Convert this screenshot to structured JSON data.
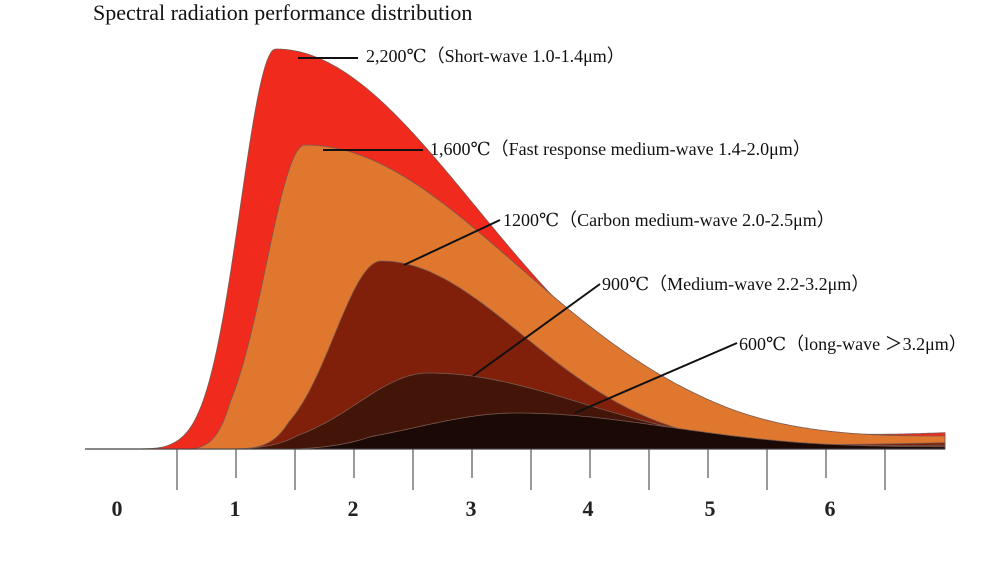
{
  "chart_data": {
    "type": "area",
    "title": "Spectral radiation performance distribution",
    "xlabel": "",
    "ylabel": "",
    "xlim": [
      0,
      7
    ],
    "tick_labels": [
      "0",
      "1",
      "2",
      "3",
      "4",
      "5",
      "6"
    ],
    "series": [
      {
        "name": "2,200℃（Short-wave 1.0-1.4μm）",
        "peak_x": 1.35,
        "peak_y": 1.0,
        "color": "#f12a1e"
      },
      {
        "name": "1,600℃（Fast response medium-wave 1.4-2.0μm）",
        "peak_x": 1.6,
        "peak_y": 0.76,
        "color": "#e0772e"
      },
      {
        "name": "1200℃（Carbon  medium-wave 2.0-2.5μm）",
        "peak_x": 2.25,
        "peak_y": 0.47,
        "color": "#80200a"
      },
      {
        "name": "900℃（Medium-wave 2.2-3.2μm）",
        "peak_x": 2.65,
        "peak_y": 0.19,
        "color": "#431408"
      },
      {
        "name": "600℃（long-wave ＞3.2μm）",
        "peak_x": 3.4,
        "peak_y": 0.09,
        "color": "#1a0905"
      }
    ]
  }
}
